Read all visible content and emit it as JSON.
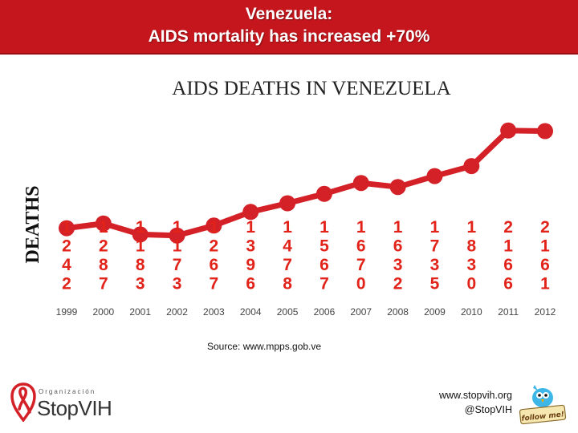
{
  "header": {
    "title_line1": "Venezuela:",
    "title_line2": "AIDS mortality has increased +70%"
  },
  "chart_data": {
    "type": "line",
    "title": "AIDS DEATHS IN VENEZUELA",
    "ylabel": "DEATHS",
    "xlabel": "",
    "categories": [
      "1999",
      "2000",
      "2001",
      "2002",
      "2003",
      "2004",
      "2005",
      "2006",
      "2007",
      "2008",
      "2009",
      "2010",
      "2011",
      "2012"
    ],
    "values": [
      1242,
      1287,
      1183,
      1173,
      1267,
      1396,
      1478,
      1567,
      1670,
      1632,
      1735,
      1830,
      2166,
      2161
    ],
    "ylim": [
      700,
      2400
    ],
    "grid": false,
    "legend": "none",
    "line_color": "#d42027",
    "label_color": "#e2231a"
  },
  "footer": {
    "source": "Source: www.mpps.gob.ve",
    "website": "www.stopvih.org",
    "handle": "@StopVIH",
    "logo_org": "Organización",
    "logo_brand": "StopVIH",
    "badge": "follow me!"
  },
  "colors": {
    "header_bg": "#c4161c",
    "accent": "#d42027"
  },
  "icons": {
    "logo": "red-ribbon-pin-icon",
    "badge": "twitter-bird-icon"
  }
}
